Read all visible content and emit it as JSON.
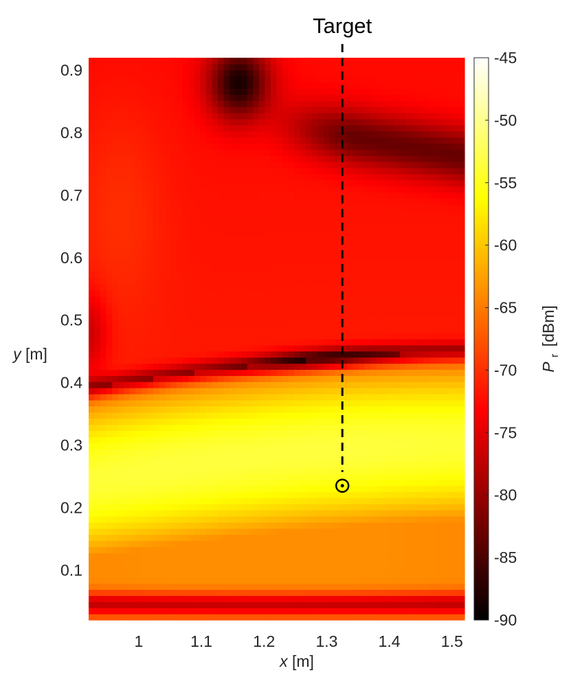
{
  "chart_data": {
    "type": "heatmap",
    "annotation": {
      "text": "Target",
      "x": 1.325,
      "y": 0.235
    },
    "xlabel": {
      "var": "x",
      "unit": "[m]"
    },
    "ylabel": {
      "var": "y",
      "unit": "[m]"
    },
    "colorbar_label": {
      "var": "P",
      "sub": "r",
      "unit": "[dBm]"
    },
    "xlim": [
      0.92,
      1.52
    ],
    "ylim": [
      0.02,
      0.92
    ],
    "clim": [
      -90,
      -45
    ],
    "x_ticks": [
      1,
      1.1,
      1.2,
      1.3,
      1.4,
      1.5
    ],
    "x_tick_labels": [
      "1",
      "1.1",
      "1.2",
      "1.3",
      "1.4",
      "1.5"
    ],
    "y_ticks": [
      0.1,
      0.2,
      0.3,
      0.4,
      0.5,
      0.6,
      0.7,
      0.8,
      0.9
    ],
    "y_tick_labels": [
      "0.1",
      "0.2",
      "0.3",
      "0.4",
      "0.5",
      "0.6",
      "0.7",
      "0.8",
      "0.9"
    ],
    "colorbar_ticks": [
      -45,
      -50,
      -55,
      -60,
      -65,
      -70,
      -75,
      -80,
      -85,
      -90
    ],
    "colorbar_tick_labels": [
      "-45",
      "-50",
      "-55",
      "-60",
      "-65",
      "-70",
      "-75",
      "-80",
      "-85",
      "-90"
    ],
    "colormap": "hot",
    "colormap_colors": [
      "#000000",
      "#ff0000",
      "#ffff00",
      "#ffffff"
    ]
  }
}
